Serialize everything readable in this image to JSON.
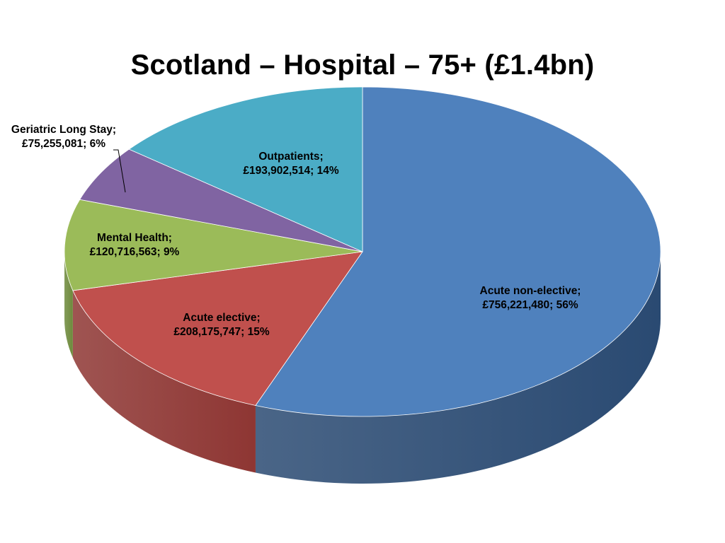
{
  "chart_data": {
    "type": "pie",
    "title": "Scotland – Hospital – 75+ (£1.4bn)",
    "slices": [
      {
        "name": "Acute non-elective",
        "amount": "£756,221,480",
        "percent": 56,
        "value": 756221480,
        "color": "#4F81BD",
        "side_color": "#2A4A72"
      },
      {
        "name": "Acute elective",
        "amount": "£208,175,747",
        "percent": 15,
        "value": 208175747,
        "color": "#C0504D",
        "side_color": "#8E3633"
      },
      {
        "name": "Mental Health",
        "amount": "£120,716,563",
        "percent": 9,
        "value": 120716563,
        "color": "#9BBB59",
        "side_color": "#6E8A3C"
      },
      {
        "name": "Geriatric Long Stay",
        "amount": "£75,255,081",
        "percent": 6,
        "value": 75255081,
        "color": "#8064A2",
        "side_color": "#5B4676"
      },
      {
        "name": "Outpatients",
        "amount": "£193,902,514",
        "percent": 14,
        "value": 193902514,
        "color": "#4BACC6",
        "side_color": "#2F7F95"
      }
    ],
    "labels": [
      {
        "line1": "Acute non-elective;",
        "line2": "£756,221,480; 56%"
      },
      {
        "line1": "Acute elective;",
        "line2": "£208,175,747; 15%"
      },
      {
        "line1": "Mental Health;",
        "line2": "£120,716,563; 9%"
      },
      {
        "line1": "Geriatric Long Stay;",
        "line2": "£75,255,081; 6%"
      },
      {
        "line1": "Outpatients;",
        "line2": "£193,902,514; 14%"
      }
    ],
    "legend": "none",
    "style": "3d"
  }
}
